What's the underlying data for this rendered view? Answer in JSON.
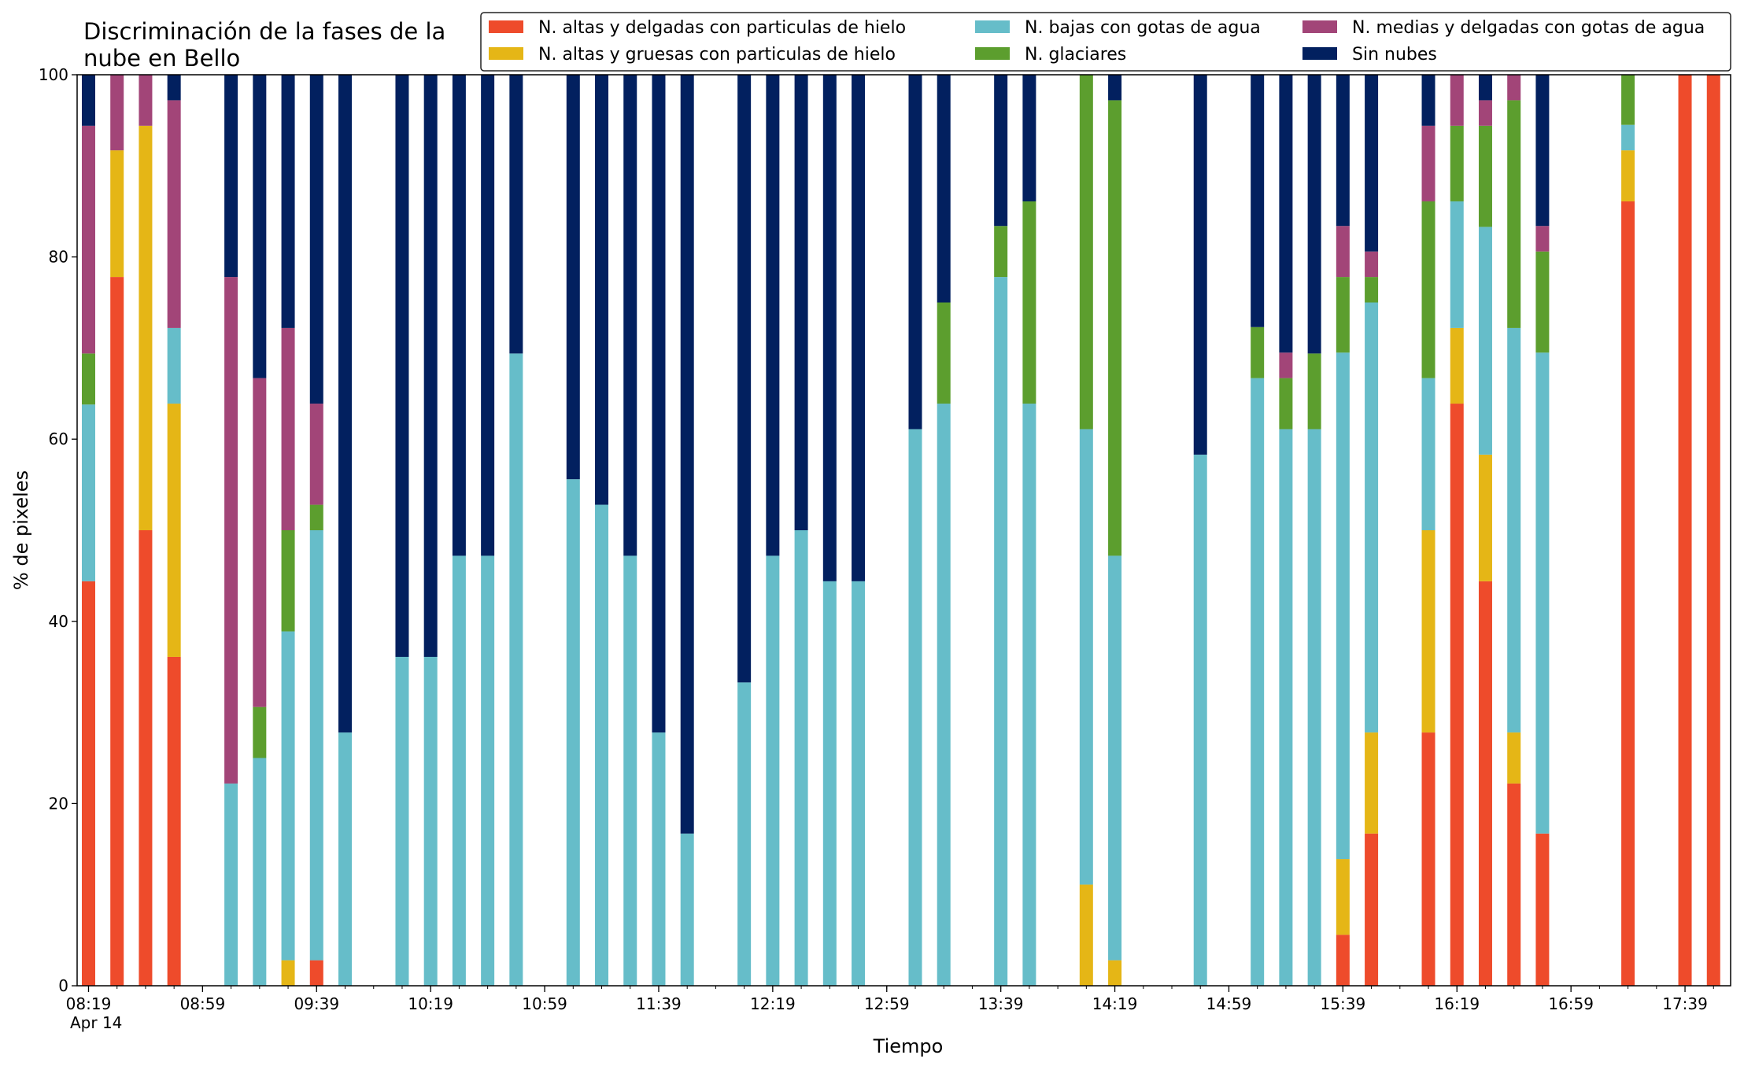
{
  "chart_data": {
    "type": "bar",
    "stacked": true,
    "title": "Discriminación de la fases de la nube en Bello",
    "title_lines": [
      "Discriminación de la fases de la",
      "nube en Bello"
    ],
    "xlabel": "Tiempo",
    "ylabel": "% de pixeles",
    "ylim": [
      0,
      100
    ],
    "yticks": [
      "0",
      "20",
      "40",
      "60",
      "80",
      "100"
    ],
    "xlim_minutes": [
      "08:15",
      "17:55"
    ],
    "x_tick_labels": [
      "08:19",
      "08:59",
      "09:39",
      "10:19",
      "10:59",
      "11:39",
      "12:19",
      "12:59",
      "13:39",
      "14:19",
      "14:59",
      "15:39",
      "16:19",
      "16:59",
      "17:39"
    ],
    "x_date_label": "Apr 14",
    "x_minor_step_minutes": 10,
    "legend_position": "top-right",
    "legend_columns": 3,
    "series": [
      {
        "name": "N. altas y delgadas con particulas de hielo",
        "color": "#ee4b2b"
      },
      {
        "name": "N. altas y gruesas con particulas de hielo",
        "color": "#e5b616"
      },
      {
        "name": "N. bajas con gotas de agua",
        "color": "#66bdc9"
      },
      {
        "name": "N. glaciares",
        "color": "#5c9e2e"
      },
      {
        "name": "N. medias y delgadas con gotas de agua",
        "color": "#a24578"
      },
      {
        "name": "Sin nubes",
        "color": "#02205f"
      }
    ],
    "bars": [
      {
        "time": "08:19",
        "values": [
          44.4,
          0,
          19.4,
          5.6,
          25.0,
          5.6
        ]
      },
      {
        "time": "08:29",
        "values": [
          77.8,
          13.9,
          0,
          0,
          8.3,
          0
        ]
      },
      {
        "time": "08:39",
        "values": [
          50.0,
          44.4,
          0,
          0,
          5.6,
          0
        ]
      },
      {
        "time": "08:49",
        "values": [
          36.1,
          27.8,
          8.3,
          0,
          25.0,
          2.8
        ]
      },
      {
        "time": "09:09",
        "values": [
          0,
          0,
          22.2,
          0,
          55.6,
          22.2
        ]
      },
      {
        "time": "09:19",
        "values": [
          0,
          0,
          25.0,
          5.6,
          36.1,
          33.3
        ]
      },
      {
        "time": "09:29",
        "values": [
          0,
          2.8,
          36.1,
          11.1,
          22.2,
          27.8
        ]
      },
      {
        "time": "09:39",
        "values": [
          2.8,
          0,
          47.2,
          2.8,
          11.1,
          36.1
        ]
      },
      {
        "time": "09:49",
        "values": [
          0,
          0,
          27.8,
          0,
          0,
          72.2
        ]
      },
      {
        "time": "10:09",
        "values": [
          0,
          0,
          36.1,
          0,
          0,
          63.9
        ]
      },
      {
        "time": "10:19",
        "values": [
          0,
          0,
          36.1,
          0,
          0,
          63.9
        ]
      },
      {
        "time": "10:29",
        "values": [
          0,
          0,
          47.2,
          0,
          0,
          52.8
        ]
      },
      {
        "time": "10:39",
        "values": [
          0,
          0,
          47.2,
          0,
          0,
          52.8
        ]
      },
      {
        "time": "10:49",
        "values": [
          0,
          0,
          69.4,
          0,
          0,
          30.6
        ]
      },
      {
        "time": "11:09",
        "values": [
          0,
          0,
          55.6,
          0,
          0,
          44.4
        ]
      },
      {
        "time": "11:19",
        "values": [
          0,
          0,
          52.8,
          0,
          0,
          47.2
        ]
      },
      {
        "time": "11:29",
        "values": [
          0,
          0,
          47.2,
          0,
          0,
          52.8
        ]
      },
      {
        "time": "11:39",
        "values": [
          0,
          0,
          27.8,
          0,
          0,
          72.2
        ]
      },
      {
        "time": "11:49",
        "values": [
          0,
          0,
          16.7,
          0,
          0,
          83.3
        ]
      },
      {
        "time": "12:09",
        "values": [
          0,
          0,
          33.3,
          0,
          0,
          66.7
        ]
      },
      {
        "time": "12:19",
        "values": [
          0,
          0,
          47.2,
          0,
          0,
          52.8
        ]
      },
      {
        "time": "12:29",
        "values": [
          0,
          0,
          50.0,
          0,
          0,
          50.0
        ]
      },
      {
        "time": "12:39",
        "values": [
          0,
          0,
          44.4,
          0,
          0,
          55.6
        ]
      },
      {
        "time": "12:49",
        "values": [
          0,
          0,
          44.4,
          0,
          0,
          55.6
        ]
      },
      {
        "time": "13:09",
        "values": [
          0,
          0,
          61.1,
          0,
          0,
          38.9
        ]
      },
      {
        "time": "13:19",
        "values": [
          0,
          0,
          63.9,
          11.1,
          0,
          25.0
        ]
      },
      {
        "time": "13:39",
        "values": [
          0,
          0,
          77.8,
          5.6,
          0,
          16.7
        ]
      },
      {
        "time": "13:49",
        "values": [
          0,
          0,
          63.9,
          22.2,
          0,
          13.9
        ]
      },
      {
        "time": "14:09",
        "values": [
          0,
          11.1,
          50.0,
          38.9,
          0,
          0
        ]
      },
      {
        "time": "14:19",
        "values": [
          0,
          2.8,
          44.4,
          50.0,
          0,
          2.8
        ]
      },
      {
        "time": "14:49",
        "values": [
          0,
          0,
          58.3,
          0,
          0,
          41.7
        ]
      },
      {
        "time": "15:09",
        "values": [
          0,
          0,
          66.7,
          5.6,
          0,
          27.8
        ]
      },
      {
        "time": "15:19",
        "values": [
          0,
          0,
          61.1,
          5.6,
          2.8,
          30.6
        ]
      },
      {
        "time": "15:29",
        "values": [
          0,
          0,
          61.1,
          8.3,
          0,
          30.6
        ]
      },
      {
        "time": "15:39",
        "values": [
          5.6,
          8.3,
          55.6,
          8.3,
          5.6,
          16.7
        ]
      },
      {
        "time": "15:49",
        "values": [
          16.7,
          11.1,
          47.2,
          2.8,
          2.8,
          19.4
        ]
      },
      {
        "time": "16:09",
        "values": [
          27.8,
          22.2,
          16.7,
          19.4,
          8.3,
          5.6
        ]
      },
      {
        "time": "16:19",
        "values": [
          63.9,
          8.3,
          13.9,
          8.3,
          5.6,
          0
        ]
      },
      {
        "time": "16:29",
        "values": [
          44.4,
          13.9,
          25.0,
          11.1,
          2.8,
          2.8
        ]
      },
      {
        "time": "16:39",
        "values": [
          22.2,
          5.6,
          44.4,
          25.0,
          2.8,
          0
        ]
      },
      {
        "time": "16:49",
        "values": [
          16.7,
          0,
          52.8,
          11.1,
          2.8,
          16.7
        ]
      },
      {
        "time": "17:19",
        "values": [
          86.1,
          5.6,
          2.8,
          5.6,
          0,
          0
        ]
      },
      {
        "time": "17:39",
        "values": [
          100,
          0,
          0,
          0,
          0,
          0
        ]
      },
      {
        "time": "17:49",
        "values": [
          100,
          0,
          0,
          0,
          0,
          0
        ]
      }
    ]
  }
}
